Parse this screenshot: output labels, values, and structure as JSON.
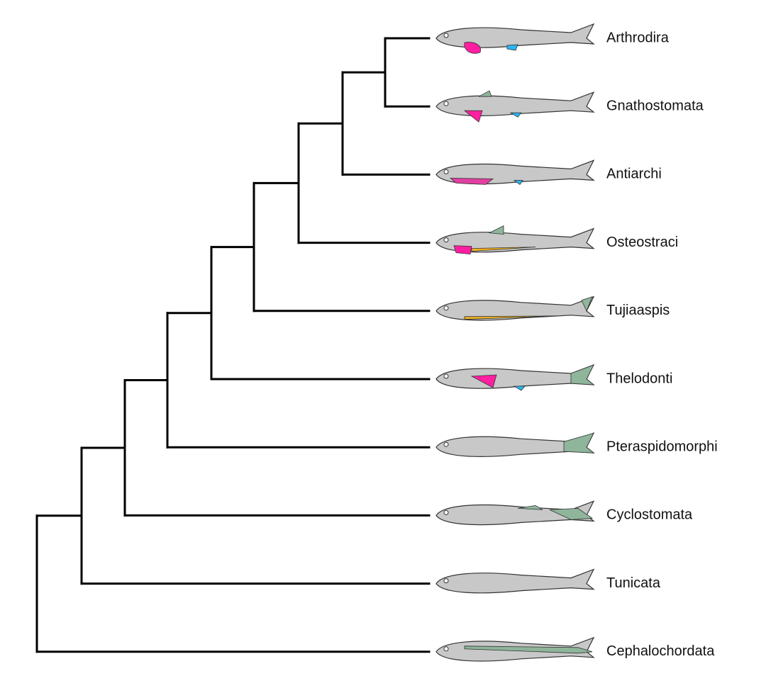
{
  "taxa": [
    "Arthrodira",
    "Gnathostomata",
    "Antiarchi",
    "Osteostraci",
    "Tujiaaspis",
    "Thelodonti",
    "Pteraspidomorphi",
    "Cyclostomata",
    "Tunicata",
    "Cephalochordata"
  ]
}
